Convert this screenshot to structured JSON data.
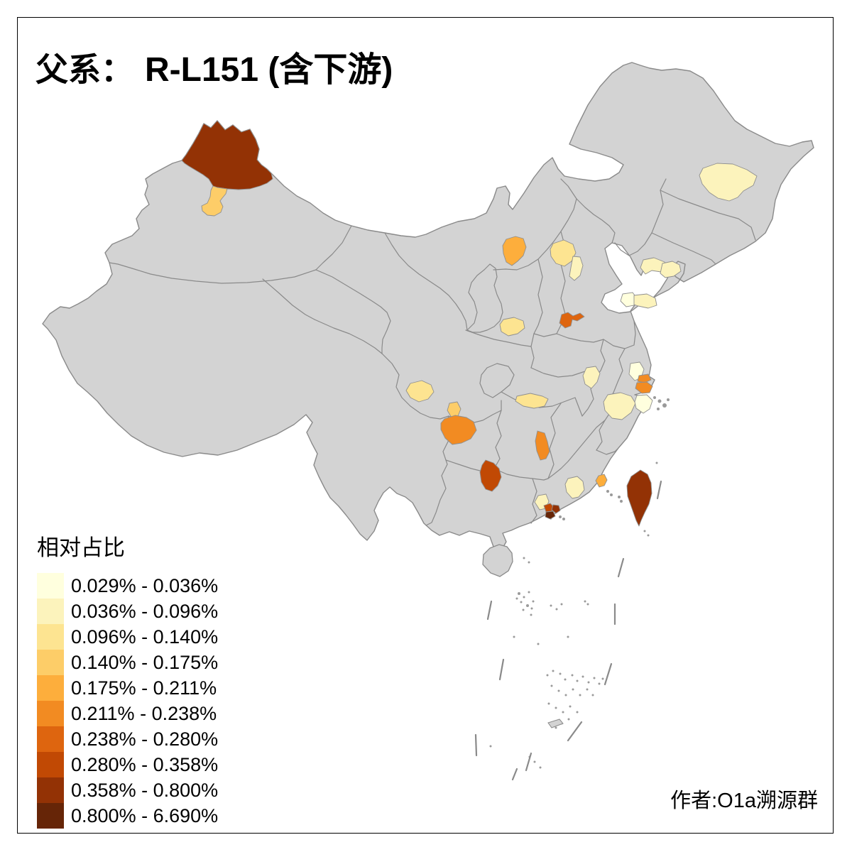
{
  "title": {
    "prefix": "父系：",
    "main": "R-L151 (含下游)"
  },
  "legend": {
    "title": "相对占比",
    "bins": [
      {
        "label": "0.029% - 0.036%",
        "color": "#FFFFDE"
      },
      {
        "label": "0.036% - 0.096%",
        "color": "#FCF3BC"
      },
      {
        "label": "0.096% - 0.140%",
        "color": "#FDE491"
      },
      {
        "label": "0.140% - 0.175%",
        "color": "#FDCD68"
      },
      {
        "label": "0.175% - 0.211%",
        "color": "#FDAE3C"
      },
      {
        "label": "0.211% - 0.238%",
        "color": "#F28B22"
      },
      {
        "label": "0.238% - 0.280%",
        "color": "#DE650F"
      },
      {
        "label": "0.280% - 0.358%",
        "color": "#C14904"
      },
      {
        "label": "0.358% - 0.800%",
        "color": "#933205"
      },
      {
        "label": "0.800% - 6.690%",
        "color": "#662507"
      }
    ]
  },
  "attribution": "作者:O1a溯源群",
  "map": {
    "background": "#FFFFFF",
    "land_color": "#D3D3D3",
    "border_color": "#8A8A8A",
    "region_stroke": "#8F8F8F",
    "island_color": "#9A9A9A",
    "lake_color": "#EDEDED",
    "frame_color": "#000000",
    "regions": [
      {
        "id": "region-01",
        "bin": 9
      },
      {
        "id": "region-02",
        "bin": 4
      },
      {
        "id": "region-03",
        "bin": 2
      },
      {
        "id": "region-04",
        "bin": 2
      },
      {
        "id": "region-05",
        "bin": 2
      },
      {
        "id": "region-06",
        "bin": 5
      },
      {
        "id": "region-07",
        "bin": 3
      },
      {
        "id": "region-08",
        "bin": 2
      },
      {
        "id": "region-09",
        "bin": 1
      },
      {
        "id": "region-10",
        "bin": 2
      },
      {
        "id": "region-11",
        "bin": 7
      },
      {
        "id": "region-12",
        "bin": 3
      },
      {
        "id": "region-13",
        "bin": 3
      },
      {
        "id": "region-14",
        "bin": 4
      },
      {
        "id": "region-15",
        "bin": 6
      },
      {
        "id": "region-16",
        "bin": 3
      },
      {
        "id": "region-17",
        "bin": 6
      },
      {
        "id": "region-18",
        "bin": 8
      },
      {
        "id": "region-19",
        "bin": 2
      },
      {
        "id": "region-20",
        "bin": 1
      },
      {
        "id": "region-21",
        "bin": 6
      },
      {
        "id": "region-22",
        "bin": 6
      },
      {
        "id": "region-23",
        "bin": 2
      },
      {
        "id": "region-24",
        "bin": 1
      },
      {
        "id": "region-25",
        "bin": 5
      },
      {
        "id": "region-26",
        "bin": 2
      },
      {
        "id": "region-27",
        "bin": 2
      },
      {
        "id": "region-28",
        "bin": 8
      },
      {
        "id": "region-29",
        "bin": 9
      },
      {
        "id": "region-30",
        "bin": 10
      },
      {
        "id": "region-31",
        "bin": 9
      }
    ]
  }
}
